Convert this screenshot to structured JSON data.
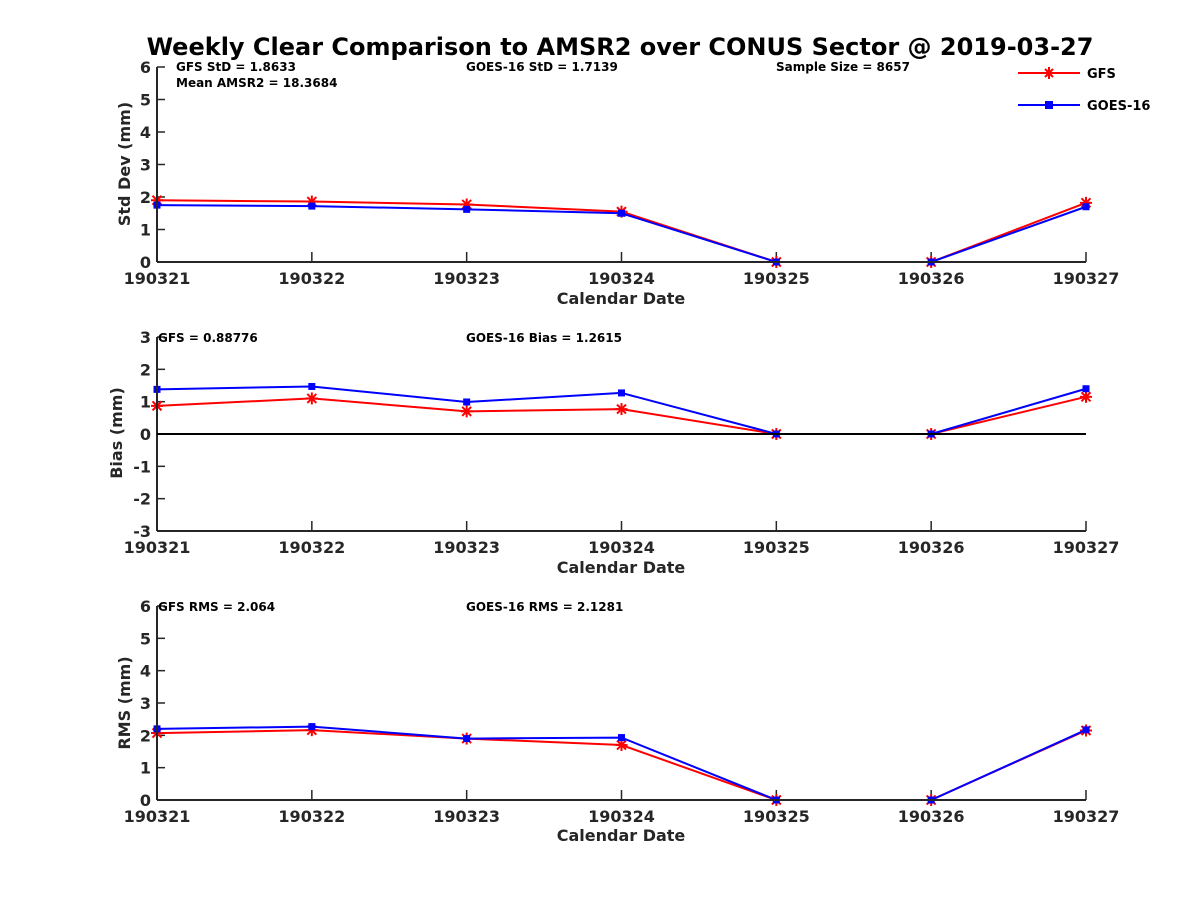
{
  "figure": {
    "title": "Weekly Clear Comparison to AMSR2 over CONUS Sector @ 2019-03-27"
  },
  "legend": {
    "placement": "top-right",
    "entries": [
      {
        "label": "GFS",
        "color": "#ff0000",
        "marker": "asterisk"
      },
      {
        "label": "GOES-16",
        "color": "#0000ff",
        "marker": "square"
      }
    ]
  },
  "chart_data": [
    {
      "type": "line",
      "xlabel": "Calendar Date",
      "ylabel": "Std Dev (mm)",
      "categories": [
        "190321",
        "190322",
        "190323",
        "190324",
        "190325",
        "190326",
        "190327"
      ],
      "yticks": [
        "0",
        "1",
        "2",
        "3",
        "4",
        "5",
        "6"
      ],
      "ylim": [
        0,
        6
      ],
      "zero_line": false,
      "annotations": [
        "GFS StD = 1.8633",
        "Mean AMSR2 = 18.3684",
        "GOES-16 StD = 1.7139",
        "Sample Size = 8657"
      ],
      "series": [
        {
          "name": "GFS",
          "color": "#ff0000",
          "values": [
            1.9,
            1.86,
            1.77,
            1.55,
            0,
            0,
            1.82
          ]
        },
        {
          "name": "GOES-16",
          "color": "#0000ff",
          "values": [
            1.75,
            1.72,
            1.62,
            1.5,
            0,
            0,
            1.7
          ]
        }
      ]
    },
    {
      "type": "line",
      "xlabel": "Calendar Date",
      "ylabel": "Bias (mm)",
      "categories": [
        "190321",
        "190322",
        "190323",
        "190324",
        "190325",
        "190326",
        "190327"
      ],
      "yticks": [
        "-3",
        "-2",
        "-1",
        "0",
        "1",
        "2",
        "3"
      ],
      "ylim": [
        -3,
        3
      ],
      "zero_line": true,
      "annotations": [
        "GFS = 0.88776",
        "GOES-16 Bias  = 1.2615"
      ],
      "series": [
        {
          "name": "GFS",
          "color": "#ff0000",
          "values": [
            0.87,
            1.1,
            0.7,
            0.77,
            0,
            0,
            1.15
          ]
        },
        {
          "name": "GOES-16",
          "color": "#0000ff",
          "values": [
            1.38,
            1.47,
            0.99,
            1.27,
            0,
            0,
            1.4
          ]
        }
      ]
    },
    {
      "type": "line",
      "xlabel": "Calendar Date",
      "ylabel": "RMS (mm)",
      "categories": [
        "190321",
        "190322",
        "190323",
        "190324",
        "190325",
        "190326",
        "190327"
      ],
      "yticks": [
        "0",
        "1",
        "2",
        "3",
        "4",
        "5",
        "6"
      ],
      "ylim": [
        0,
        6
      ],
      "zero_line": false,
      "annotations": [
        "GFS RMS = 2.064",
        "GOES-16 RMS = 2.1281"
      ],
      "series": [
        {
          "name": "GFS",
          "color": "#ff0000",
          "values": [
            2.07,
            2.16,
            1.9,
            1.7,
            0,
            0,
            2.15
          ]
        },
        {
          "name": "GOES-16",
          "color": "#0000ff",
          "values": [
            2.2,
            2.27,
            1.9,
            1.93,
            0,
            0,
            2.17
          ]
        }
      ]
    }
  ]
}
